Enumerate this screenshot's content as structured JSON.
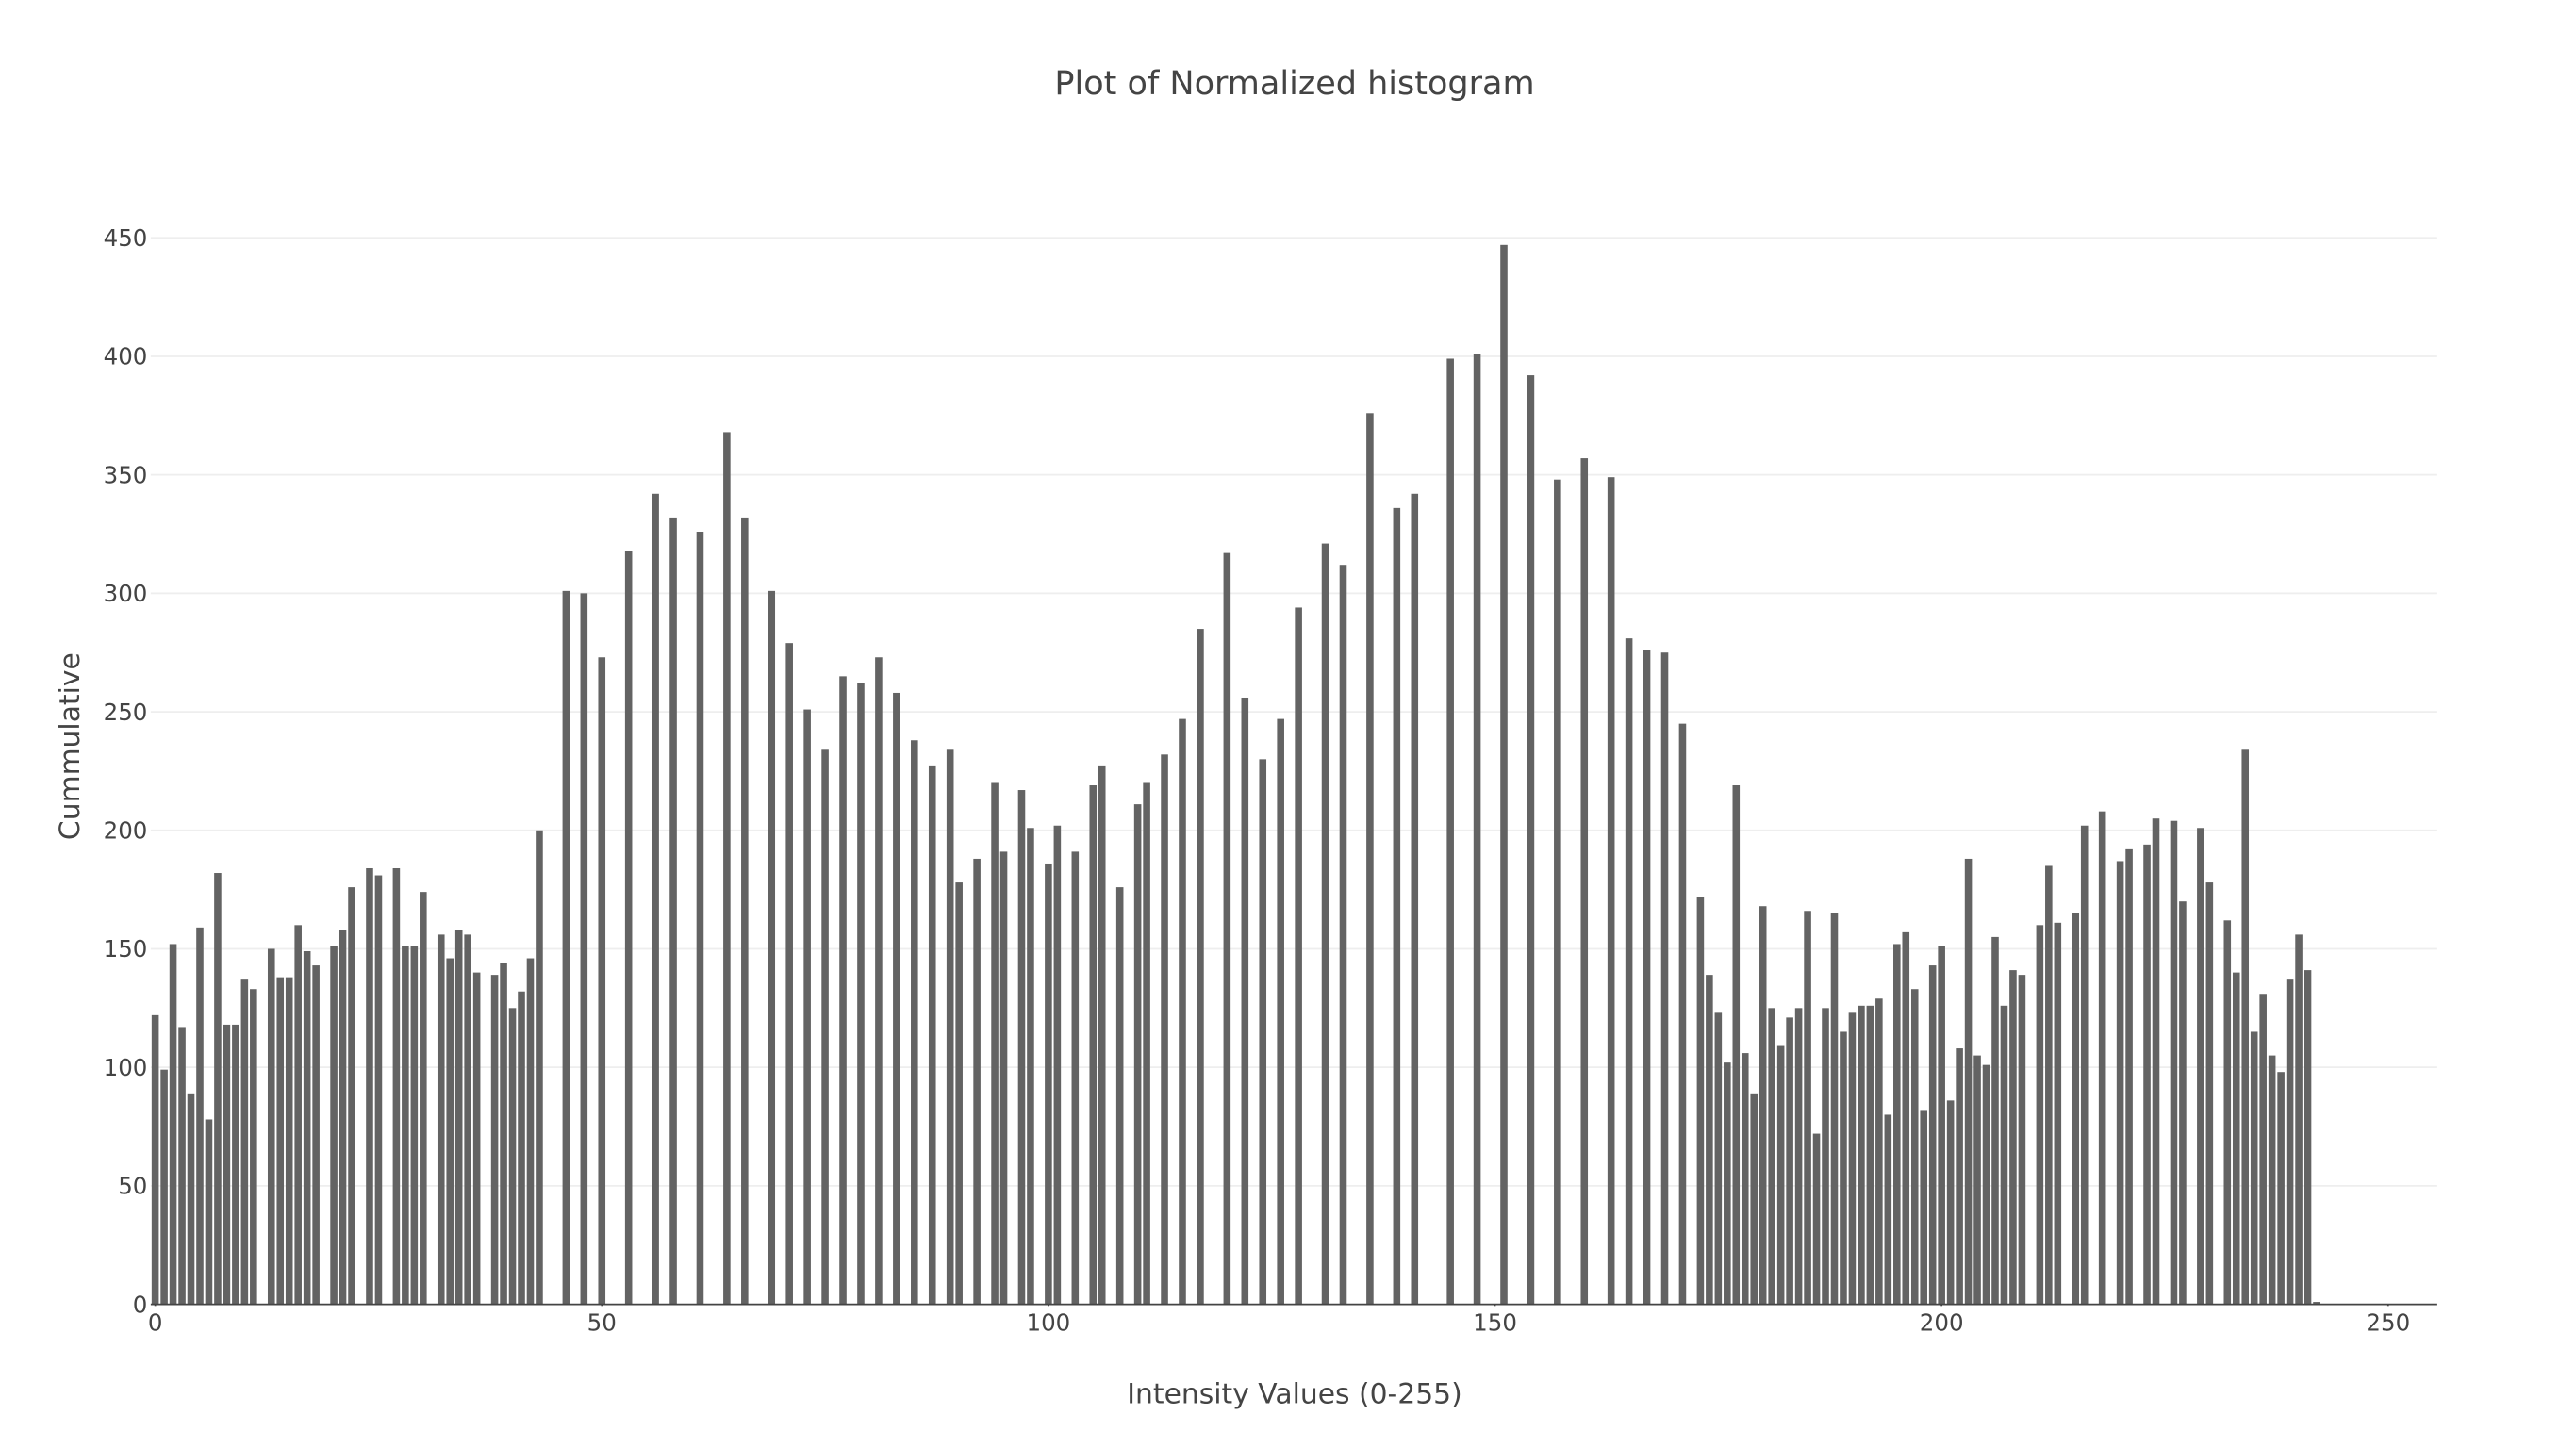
{
  "chart_data": {
    "type": "bar",
    "title": "Plot of Normalized histogram",
    "x_label": "Intensity Values (0-255)",
    "y_label": "Cummulative",
    "color": "#636363",
    "grid": true,
    "xlim": [
      -0.5,
      255.5
    ],
    "xticks": [
      0,
      50,
      100,
      150,
      200,
      250
    ],
    "ylim": [
      0,
      470
    ],
    "yticks": [
      0,
      50,
      100,
      150,
      200,
      250,
      300,
      350,
      400,
      450
    ],
    "x": [
      0,
      1,
      2,
      3,
      4,
      5,
      6,
      7,
      8,
      9,
      10,
      11,
      12,
      13,
      14,
      15,
      16,
      17,
      18,
      19,
      20,
      21,
      22,
      23,
      24,
      25,
      26,
      27,
      28,
      29,
      30,
      31,
      32,
      33,
      34,
      35,
      36,
      37,
      38,
      39,
      40,
      41,
      42,
      43,
      44,
      45,
      46,
      47,
      48,
      49,
      50,
      51,
      52,
      53,
      54,
      55,
      56,
      57,
      58,
      59,
      60,
      61,
      62,
      63,
      64,
      65,
      66,
      67,
      68,
      69,
      70,
      71,
      72,
      73,
      74,
      75,
      76,
      77,
      78,
      79,
      80,
      81,
      82,
      83,
      84,
      85,
      86,
      87,
      88,
      89,
      90,
      91,
      92,
      93,
      94,
      95,
      96,
      97,
      98,
      99,
      100,
      101,
      102,
      103,
      104,
      105,
      106,
      107,
      108,
      109,
      110,
      111,
      112,
      113,
      114,
      115,
      116,
      117,
      118,
      119,
      120,
      121,
      122,
      123,
      124,
      125,
      126,
      127,
      128,
      129,
      130,
      131,
      132,
      133,
      134,
      135,
      136,
      137,
      138,
      139,
      140,
      141,
      142,
      143,
      144,
      145,
      146,
      147,
      148,
      149,
      150,
      151,
      152,
      153,
      154,
      155,
      156,
      157,
      158,
      159,
      160,
      161,
      162,
      163,
      164,
      165,
      166,
      167,
      168,
      169,
      170,
      171,
      172,
      173,
      174,
      175,
      176,
      177,
      178,
      179,
      180,
      181,
      182,
      183,
      184,
      185,
      186,
      187,
      188,
      189,
      190,
      191,
      192,
      193,
      194,
      195,
      196,
      197,
      198,
      199,
      200,
      201,
      202,
      203,
      204,
      205,
      206,
      207,
      208,
      209,
      210,
      211,
      212,
      213,
      214,
      215,
      216,
      217,
      218,
      219,
      220,
      221,
      222,
      223,
      224,
      225,
      226,
      227,
      228,
      229,
      230,
      231,
      232,
      233,
      234,
      235,
      236,
      237,
      238,
      239,
      240,
      241,
      242,
      243,
      244,
      245,
      246,
      247,
      248,
      249,
      250,
      251,
      252,
      253,
      254,
      255
    ],
    "values": [
      122,
      99,
      152,
      117,
      89,
      159,
      78,
      182,
      118,
      118,
      137,
      133,
      0,
      150,
      138,
      138,
      160,
      149,
      143,
      0,
      151,
      158,
      176,
      0,
      184,
      181,
      0,
      184,
      151,
      151,
      174,
      0,
      156,
      146,
      158,
      156,
      140,
      0,
      139,
      144,
      125,
      132,
      146,
      200,
      0,
      0,
      301,
      0,
      300,
      0,
      273,
      0,
      0,
      318,
      0,
      0,
      342,
      0,
      332,
      0,
      0,
      326,
      0,
      0,
      368,
      0,
      332,
      0,
      0,
      301,
      0,
      279,
      0,
      251,
      0,
      234,
      0,
      265,
      0,
      262,
      0,
      273,
      0,
      258,
      0,
      238,
      0,
      227,
      0,
      234,
      178,
      0,
      188,
      0,
      220,
      191,
      0,
      217,
      201,
      0,
      186,
      202,
      0,
      191,
      0,
      219,
      227,
      0,
      176,
      0,
      211,
      220,
      0,
      232,
      0,
      247,
      0,
      285,
      0,
      0,
      317,
      0,
      256,
      0,
      230,
      0,
      247,
      0,
      294,
      0,
      0,
      321,
      0,
      312,
      0,
      0,
      376,
      0,
      0,
      336,
      0,
      342,
      0,
      0,
      0,
      399,
      0,
      0,
      401,
      0,
      0,
      447,
      0,
      0,
      392,
      0,
      0,
      348,
      0,
      0,
      357,
      0,
      0,
      349,
      0,
      281,
      0,
      276,
      0,
      275,
      0,
      245,
      0,
      172,
      139,
      123,
      102,
      219,
      106,
      89,
      168,
      125,
      109,
      121,
      125,
      166,
      72,
      125,
      165,
      115,
      123,
      126,
      126,
      129,
      80,
      152,
      157,
      133,
      82,
      143,
      151,
      86,
      108,
      188,
      105,
      101,
      155,
      126,
      141,
      139,
      0,
      160,
      185,
      161,
      0,
      165,
      202,
      0,
      208,
      0,
      187,
      192,
      0,
      194,
      205,
      0,
      204,
      170,
      0,
      201,
      178,
      0,
      162,
      140,
      234,
      115,
      131,
      105,
      98,
      137,
      156,
      141,
      1,
      0,
      0,
      0,
      0,
      0,
      0,
      0,
      0,
      0,
      0,
      0,
      0,
      0
    ]
  }
}
